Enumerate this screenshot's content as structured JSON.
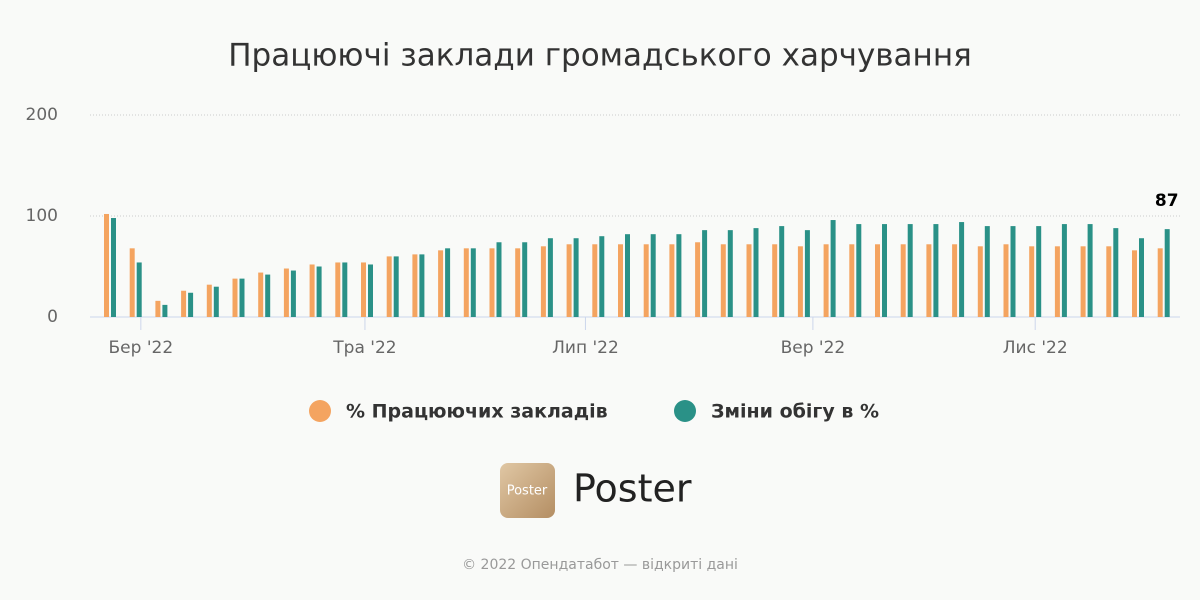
{
  "chart_data": {
    "type": "bar",
    "title": "Працюючі заклади громадського харчування",
    "categories": [
      null,
      null,
      null,
      null,
      null,
      null,
      null,
      null,
      null,
      null,
      null,
      null,
      null,
      null,
      null,
      null,
      null,
      null,
      null,
      null,
      null,
      null,
      null,
      null,
      null,
      null,
      null,
      null,
      null,
      null,
      null,
      null,
      null,
      null,
      null,
      null,
      null,
      null,
      null,
      null,
      null,
      null
    ],
    "series": [
      {
        "name": "% Працюючих закладів",
        "color": "#f4a460",
        "values": [
          102,
          68,
          16,
          26,
          32,
          38,
          44,
          48,
          52,
          54,
          54,
          60,
          62,
          66,
          68,
          68,
          68,
          70,
          72,
          72,
          72,
          72,
          72,
          74,
          72,
          72,
          72,
          70,
          72,
          72,
          72,
          72,
          72,
          72,
          70,
          72,
          70,
          70,
          70,
          70,
          66,
          68
        ]
      },
      {
        "name": "Зміни обігу в %",
        "color": "#2a9187",
        "values": [
          98,
          54,
          12,
          24,
          30,
          38,
          42,
          46,
          50,
          54,
          52,
          60,
          62,
          68,
          68,
          74,
          74,
          78,
          78,
          80,
          82,
          82,
          82,
          86,
          86,
          88,
          90,
          86,
          96,
          92,
          92,
          92,
          92,
          94,
          90,
          90,
          90,
          92,
          92,
          88,
          78,
          87
        ]
      }
    ],
    "ylim": [
      0,
      200
    ],
    "yticks": [
      0,
      100,
      200
    ],
    "grid": true,
    "xticks": [
      {
        "value": 1.2,
        "label": "Бер '22"
      },
      {
        "value": 9.92,
        "label": "Тра '22"
      },
      {
        "value": 18.5,
        "label": "Лип '22"
      },
      {
        "value": 27.35,
        "label": "Вер '22"
      },
      {
        "value": 36,
        "label": "Лис '22"
      }
    ]
  },
  "brand": {
    "logo_text": "Poster",
    "name": "Poster"
  },
  "footer": "© 2022 Опендатабот — відкриті дані"
}
